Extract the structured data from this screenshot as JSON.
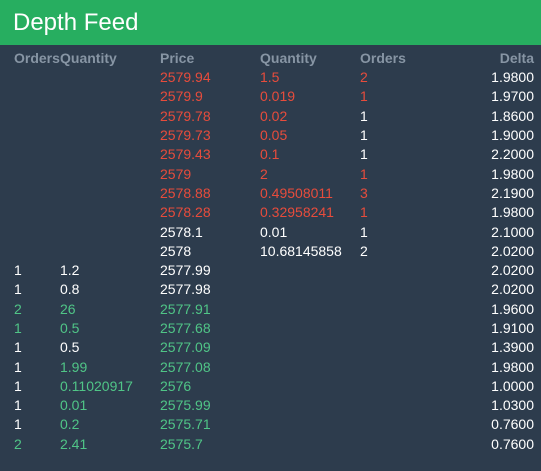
{
  "title": "Depth Feed",
  "columns": [
    "Orders",
    "Quantity",
    "Price",
    "Quantity",
    "Orders",
    "Delta"
  ],
  "colors": {
    "header_bg": "#27ae60",
    "body_bg": "#2d3c4d",
    "ask": "#e74c3c",
    "bid": "#50c587",
    "neutral": "#ffffff",
    "column_header": "#8795a4"
  },
  "rows": [
    {
      "bid_orders": "",
      "bid_qty": "",
      "price": "2579.94",
      "ask_qty": "1.5",
      "ask_orders": "2",
      "delta": "1.9800",
      "price_color": "ask",
      "ask_qty_color": "ask",
      "ask_orders_color": "ask"
    },
    {
      "bid_orders": "",
      "bid_qty": "",
      "price": "2579.9",
      "ask_qty": "0.019",
      "ask_orders": "1",
      "delta": "1.9700",
      "price_color": "ask",
      "ask_qty_color": "ask",
      "ask_orders_color": "ask"
    },
    {
      "bid_orders": "",
      "bid_qty": "",
      "price": "2579.78",
      "ask_qty": "0.02",
      "ask_orders": "1",
      "delta": "1.8600",
      "price_color": "ask",
      "ask_qty_color": "ask",
      "ask_orders_color": "neutral"
    },
    {
      "bid_orders": "",
      "bid_qty": "",
      "price": "2579.73",
      "ask_qty": "0.05",
      "ask_orders": "1",
      "delta": "1.9000",
      "price_color": "ask",
      "ask_qty_color": "ask",
      "ask_orders_color": "neutral"
    },
    {
      "bid_orders": "",
      "bid_qty": "",
      "price": "2579.43",
      "ask_qty": "0.1",
      "ask_orders": "1",
      "delta": "2.2000",
      "price_color": "ask",
      "ask_qty_color": "ask",
      "ask_orders_color": "neutral"
    },
    {
      "bid_orders": "",
      "bid_qty": "",
      "price": "2579",
      "ask_qty": "2",
      "ask_orders": "1",
      "delta": "1.9800",
      "price_color": "ask",
      "ask_qty_color": "ask",
      "ask_orders_color": "ask"
    },
    {
      "bid_orders": "",
      "bid_qty": "",
      "price": "2578.88",
      "ask_qty": "0.49508011",
      "ask_orders": "3",
      "delta": "2.1900",
      "price_color": "ask",
      "ask_qty_color": "ask",
      "ask_orders_color": "ask"
    },
    {
      "bid_orders": "",
      "bid_qty": "",
      "price": "2578.28",
      "ask_qty": "0.32958241",
      "ask_orders": "1",
      "delta": "1.9800",
      "price_color": "ask",
      "ask_qty_color": "ask",
      "ask_orders_color": "ask"
    },
    {
      "bid_orders": "",
      "bid_qty": "",
      "price": "2578.1",
      "ask_qty": "0.01",
      "ask_orders": "1",
      "delta": "2.1000",
      "price_color": "neutral",
      "ask_qty_color": "neutral",
      "ask_orders_color": "neutral"
    },
    {
      "bid_orders": "",
      "bid_qty": "",
      "price": "2578",
      "ask_qty": "10.68145858",
      "ask_orders": "2",
      "delta": "2.0200",
      "price_color": "neutral",
      "ask_qty_color": "neutral",
      "ask_orders_color": "neutral"
    },
    {
      "bid_orders": "1",
      "bid_qty": "1.2",
      "price": "2577.99",
      "ask_qty": "",
      "ask_orders": "",
      "delta": "2.0200",
      "bid_orders_color": "neutral",
      "bid_qty_color": "neutral",
      "price_color": "neutral"
    },
    {
      "bid_orders": "1",
      "bid_qty": "0.8",
      "price": "2577.98",
      "ask_qty": "",
      "ask_orders": "",
      "delta": "2.0200",
      "bid_orders_color": "neutral",
      "bid_qty_color": "neutral",
      "price_color": "neutral"
    },
    {
      "bid_orders": "2",
      "bid_qty": "26",
      "price": "2577.91",
      "ask_qty": "",
      "ask_orders": "",
      "delta": "1.9600",
      "bid_orders_color": "bid",
      "bid_qty_color": "bid",
      "price_color": "bid"
    },
    {
      "bid_orders": "1",
      "bid_qty": "0.5",
      "price": "2577.68",
      "ask_qty": "",
      "ask_orders": "",
      "delta": "1.9100",
      "bid_orders_color": "bid",
      "bid_qty_color": "bid",
      "price_color": "bid"
    },
    {
      "bid_orders": "1",
      "bid_qty": "0.5",
      "price": "2577.09",
      "ask_qty": "",
      "ask_orders": "",
      "delta": "1.3900",
      "bid_orders_color": "neutral",
      "bid_qty_color": "neutral",
      "price_color": "bid"
    },
    {
      "bid_orders": "1",
      "bid_qty": "1.99",
      "price": "2577.08",
      "ask_qty": "",
      "ask_orders": "",
      "delta": "1.9800",
      "bid_orders_color": "neutral",
      "bid_qty_color": "bid",
      "price_color": "bid"
    },
    {
      "bid_orders": "1",
      "bid_qty": "0.11020917",
      "price": "2576",
      "ask_qty": "",
      "ask_orders": "",
      "delta": "1.0000",
      "bid_orders_color": "neutral",
      "bid_qty_color": "bid",
      "price_color": "bid"
    },
    {
      "bid_orders": "1",
      "bid_qty": "0.01",
      "price": "2575.99",
      "ask_qty": "",
      "ask_orders": "",
      "delta": "1.0300",
      "bid_orders_color": "neutral",
      "bid_qty_color": "bid",
      "price_color": "bid"
    },
    {
      "bid_orders": "1",
      "bid_qty": "0.2",
      "price": "2575.71",
      "ask_qty": "",
      "ask_orders": "",
      "delta": "0.7600",
      "bid_orders_color": "neutral",
      "bid_qty_color": "bid",
      "price_color": "bid"
    },
    {
      "bid_orders": "2",
      "bid_qty": "2.41",
      "price": "2575.7",
      "ask_qty": "",
      "ask_orders": "",
      "delta": "0.7600",
      "bid_orders_color": "bid",
      "bid_qty_color": "bid",
      "price_color": "bid"
    }
  ]
}
